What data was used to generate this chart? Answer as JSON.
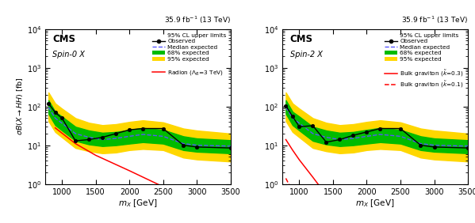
{
  "mass": [
    800,
    900,
    1000,
    1200,
    1400,
    1600,
    1800,
    2000,
    2200,
    2500,
    2800,
    3000,
    3500
  ],
  "spin0_obs": [
    120,
    70,
    50,
    13,
    14,
    16,
    20,
    25,
    27,
    27,
    10,
    9,
    8.5
  ],
  "spin0_exp": [
    95,
    50,
    37,
    20,
    16,
    14,
    15,
    17,
    19,
    17,
    11,
    10,
    9.5
  ],
  "spin0_1s_up": [
    145,
    73,
    55,
    30,
    24,
    21,
    22,
    25,
    28,
    25,
    17,
    15,
    13.5
  ],
  "spin0_1s_dn": [
    65,
    33,
    24,
    13,
    10.5,
    9.5,
    10,
    11,
    12,
    11,
    7.5,
    6.8,
    6.2
  ],
  "spin0_2s_up": [
    230,
    120,
    88,
    50,
    38,
    33,
    35,
    40,
    44,
    39,
    27,
    24,
    20
  ],
  "spin0_2s_dn": [
    42,
    22,
    16,
    8.5,
    7,
    6.2,
    6.5,
    7.5,
    8,
    7.5,
    4.8,
    4.3,
    3.8
  ],
  "spin2_obs": [
    105,
    55,
    30,
    32,
    12,
    14,
    18,
    22,
    27,
    27,
    10,
    9,
    8.5
  ],
  "spin2_exp": [
    95,
    50,
    37,
    20,
    16,
    14,
    15,
    17,
    19,
    17,
    11,
    10,
    9.5
  ],
  "spin2_1s_up": [
    145,
    73,
    55,
    30,
    24,
    21,
    22,
    25,
    28,
    25,
    17,
    15,
    13.5
  ],
  "spin2_1s_dn": [
    65,
    33,
    24,
    13,
    10.5,
    9.5,
    10,
    11,
    12,
    11,
    7.5,
    6.8,
    6.2
  ],
  "spin2_2s_up": [
    230,
    120,
    88,
    50,
    38,
    33,
    35,
    40,
    44,
    39,
    27,
    24,
    20
  ],
  "spin2_2s_dn": [
    42,
    22,
    16,
    8.5,
    7,
    6.2,
    6.5,
    7.5,
    8,
    7.5,
    4.8,
    4.3,
    3.8
  ],
  "radion_mass": [
    900,
    1200,
    1500,
    2000,
    2500,
    3000,
    3500
  ],
  "radion_xsec": [
    28,
    11,
    5.5,
    2.2,
    0.85,
    0.33,
    0.13
  ],
  "bulk03_mass": [
    800,
    900,
    1000,
    1200,
    1400,
    1500
  ],
  "bulk03_xsec": [
    14,
    7.5,
    4.2,
    1.5,
    0.52,
    0.28
  ],
  "bulk01_mass": [
    800,
    850,
    900,
    950,
    1000
  ],
  "bulk01_xsec": [
    1.4,
    0.95,
    0.63,
    0.42,
    0.28
  ],
  "ylim_lo": 1,
  "ylim_hi": 10000,
  "xlim_lo": 750,
  "xlim_hi": 3500,
  "color_1s": "#00BB00",
  "color_2s": "#FFD700",
  "color_obs": "#000000",
  "color_exp": "#5555FF",
  "color_radion": "#FF0000",
  "color_bulk03": "#FF0000",
  "color_bulk01": "#FF0000",
  "header": "35.9 fb$^{-1}$ (13 TeV)"
}
